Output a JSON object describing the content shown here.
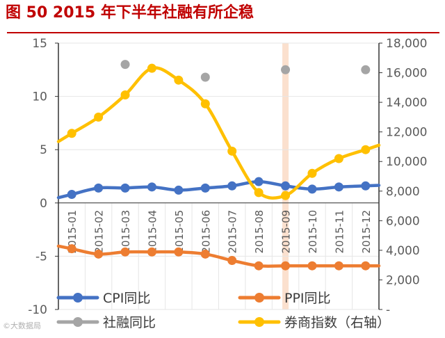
{
  "title": "图 50   2015 年下半年社融有所企稳",
  "watermark": "©大数据局",
  "chart_data": {
    "type": "line",
    "categories": [
      "2015-01",
      "2015-02",
      "2015-03",
      "2015-04",
      "2015-05",
      "2015-06",
      "2015-07",
      "2015-08",
      "2015-09",
      "2015-10",
      "2015-11",
      "2015-12"
    ],
    "y_left": {
      "range": [
        -10,
        15
      ],
      "ticks": [
        "15",
        "10",
        "5",
        "0",
        "-5",
        "-10"
      ],
      "tick_values": [
        15,
        10,
        5,
        0,
        -5,
        -10
      ]
    },
    "y_right": {
      "range": [
        0,
        18000
      ],
      "ticks": [
        "18,000",
        "16,000",
        "14,000",
        "12,000",
        "10,000",
        "8,000",
        "6,000",
        "4,000",
        "2,000",
        "-"
      ],
      "tick_values": [
        18000,
        16000,
        14000,
        12000,
        10000,
        8000,
        6000,
        4000,
        2000,
        0
      ]
    },
    "highlight_category": "2015-09",
    "series": [
      {
        "name": "CPI同比",
        "axis": "left",
        "color": "#4472C4",
        "line": true,
        "values": [
          0.8,
          1.4,
          1.4,
          1.5,
          1.2,
          1.4,
          1.6,
          2.0,
          1.6,
          1.3,
          1.5,
          1.6
        ]
      },
      {
        "name": "PPI同比",
        "axis": "left",
        "color": "#ED7D31",
        "line": true,
        "values": [
          -4.3,
          -4.8,
          -4.6,
          -4.6,
          -4.6,
          -4.8,
          -5.4,
          -5.9,
          -5.9,
          -5.9,
          -5.9,
          -5.9
        ]
      },
      {
        "name": "社融同比",
        "axis": "left",
        "color": "#A5A5A5",
        "line": false,
        "values": [
          null,
          null,
          13.0,
          null,
          null,
          11.8,
          null,
          null,
          12.5,
          null,
          null,
          12.5
        ]
      },
      {
        "name": "券商指数（右轴）",
        "axis": "right",
        "color": "#FFC000",
        "line": true,
        "values": [
          11900,
          13000,
          14500,
          16300,
          15500,
          13900,
          10700,
          7900,
          7700,
          9200,
          10200,
          10800
        ]
      }
    ],
    "legend": [
      "CPI同比",
      "PPI同比",
      "社融同比",
      "券商指数（右轴）"
    ]
  }
}
